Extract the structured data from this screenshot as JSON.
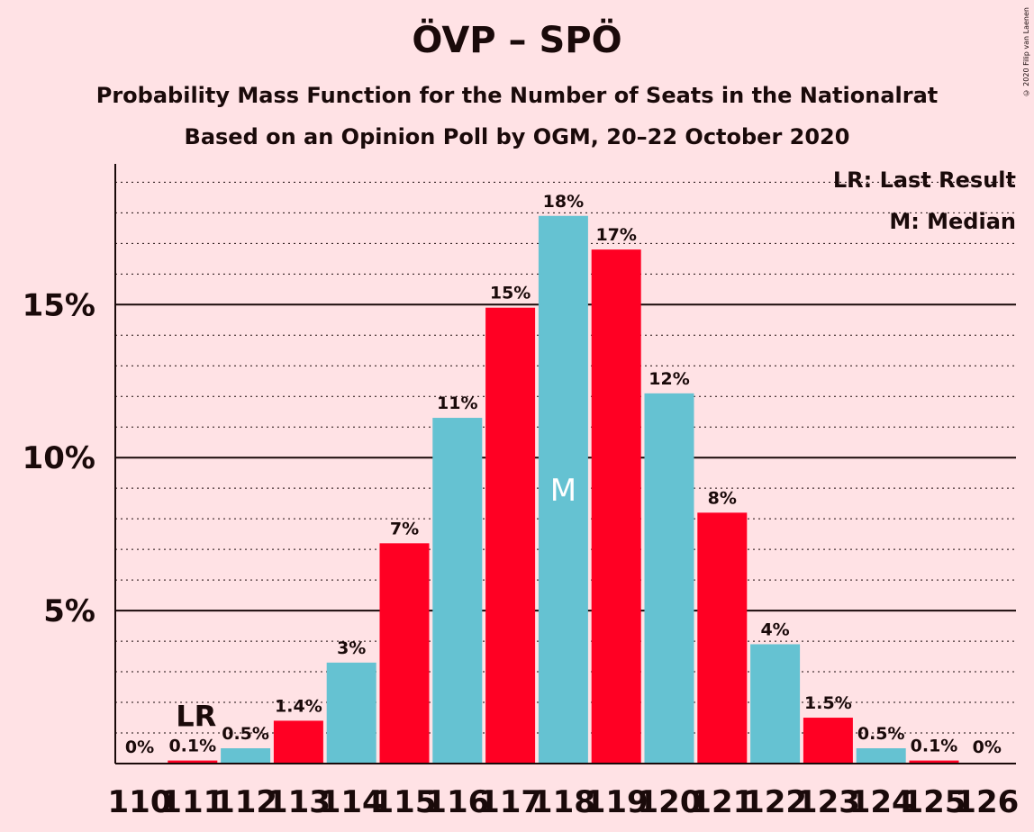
{
  "title": "ÖVP – SPÖ",
  "subtitle": "Probability Mass Function for the Number of Seats in the Nationalrat",
  "subtitle2": "Based on an Opinion Poll by OGM, 20–22 October 2020",
  "copyright": "© 2020 Filip van Laenen",
  "legend": {
    "lr": "LR: Last Result",
    "median": "M: Median"
  },
  "colors": {
    "red": "#ff0023",
    "blue": "#65c2d2",
    "background": "#ffe2e5",
    "text": "#1a0a0a"
  },
  "chart_data": {
    "type": "bar",
    "xlabel": "",
    "ylabel": "",
    "ylim": [
      0,
      19.6
    ],
    "yticks": [
      5,
      10,
      15
    ],
    "ytick_labels": [
      "5%",
      "10%",
      "15%"
    ],
    "minor_grid_step": 1,
    "categories": [
      "110",
      "111",
      "112",
      "113",
      "114",
      "115",
      "116",
      "117",
      "118",
      "119",
      "120",
      "121",
      "122",
      "123",
      "124",
      "125",
      "126"
    ],
    "values": [
      0,
      0.1,
      0.5,
      1.4,
      3.3,
      7.2,
      11.3,
      14.9,
      17.9,
      16.8,
      12.1,
      8.2,
      3.9,
      1.5,
      0.5,
      0.1,
      0
    ],
    "labels": [
      "0%",
      "0.1%",
      "0.5%",
      "1.4%",
      "3%",
      "7%",
      "11%",
      "15%",
      "18%",
      "17%",
      "12%",
      "8%",
      "4%",
      "1.5%",
      "0.5%",
      "0.1%",
      "0%"
    ],
    "bar_colors": [
      "blue",
      "red",
      "blue",
      "red",
      "blue",
      "red",
      "blue",
      "red",
      "blue",
      "red",
      "blue",
      "red",
      "blue",
      "red",
      "blue",
      "red",
      "blue"
    ],
    "last_result": {
      "category": "111",
      "label": "LR"
    },
    "median": {
      "category": "118",
      "label": "M"
    }
  }
}
